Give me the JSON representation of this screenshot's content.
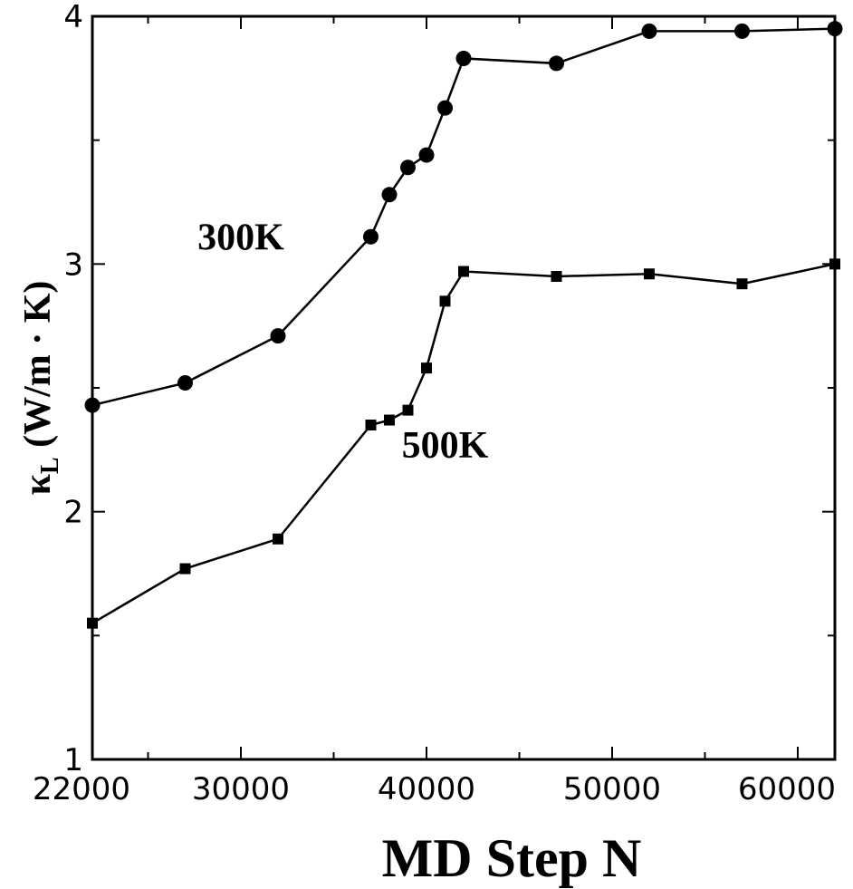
{
  "chart_data": {
    "type": "line",
    "xlabel": "MD Step N",
    "ylabel": {
      "symbol": "κ",
      "subscript": "L",
      "unit": " (W/m · K)"
    },
    "xlim": [
      22000,
      62000
    ],
    "ylim": [
      1,
      4
    ],
    "x_ticks": [
      22000,
      30000,
      40000,
      50000,
      60000
    ],
    "x_tick_labels": [
      "22000",
      "30000",
      "40000",
      "50000",
      "60000"
    ],
    "y_ticks": [
      1,
      2,
      3,
      4
    ],
    "y_tick_labels": [
      "1",
      "2",
      "3",
      "4"
    ],
    "grid": false,
    "legend": "none",
    "series": [
      {
        "name": "300K",
        "marker": "circle",
        "x": [
          22000,
          27000,
          32000,
          37000,
          38000,
          39000,
          40000,
          41000,
          42000,
          47000,
          52000,
          57000,
          62000
        ],
        "y": [
          2.43,
          2.52,
          2.71,
          3.11,
          3.28,
          3.39,
          3.44,
          3.63,
          3.83,
          3.81,
          3.94,
          3.94,
          3.95
        ],
        "label_at": [
          30000,
          3.11
        ]
      },
      {
        "name": "500K",
        "marker": "square",
        "x": [
          22000,
          27000,
          32000,
          37000,
          38000,
          39000,
          40000,
          41000,
          42000,
          47000,
          52000,
          57000,
          62000
        ],
        "y": [
          1.55,
          1.77,
          1.89,
          2.35,
          2.37,
          2.41,
          2.58,
          2.85,
          2.97,
          2.95,
          2.96,
          2.92,
          3.0
        ],
        "label_at": [
          41000,
          2.27
        ]
      }
    ]
  }
}
